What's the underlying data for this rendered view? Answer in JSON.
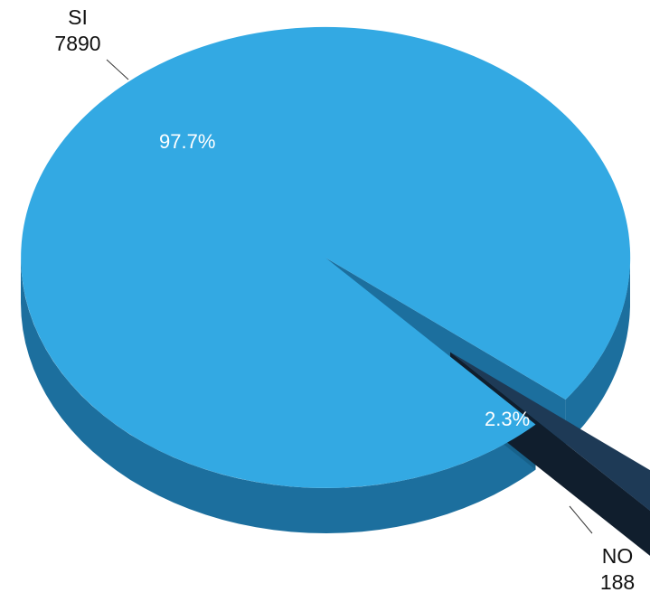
{
  "chart_data": {
    "type": "pie",
    "style": "3d-exploded",
    "categories": [
      "SI",
      "NO"
    ],
    "values": [
      7890,
      188
    ],
    "percent_labels": [
      "97.7%",
      "2.3%"
    ],
    "colors": {
      "SI": "#33a9e3",
      "NO": "#1e3a56",
      "SI_side": "#1c6f9e",
      "NO_side": "#0f1f30",
      "outside_label": "#111111",
      "percent_label": "#ffffff"
    },
    "legend": "none",
    "exploded_category": "NO"
  }
}
